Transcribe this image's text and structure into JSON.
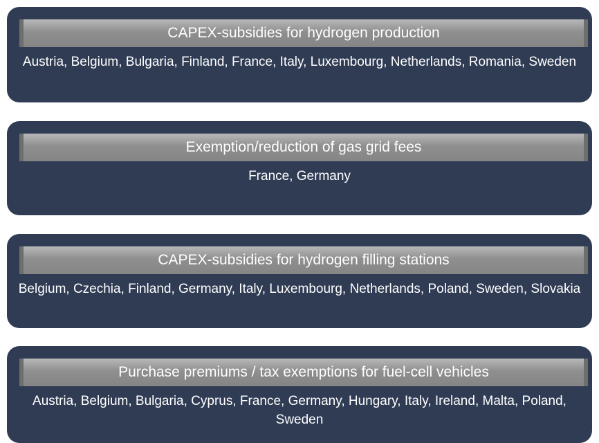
{
  "items": [
    {
      "title": "CAPEX-subsidies for hydrogen production",
      "countries": "Austria, Belgium, Bulgaria, Finland, France, Italy, Luxembourg, Netherlands, Romania, Sweden"
    },
    {
      "title": "Exemption/reduction of gas grid fees",
      "countries": "France, Germany"
    },
    {
      "title": "CAPEX-subsidies for hydrogen filling stations",
      "countries": "Belgium, Czechia, Finland, Germany, Italy, Luxembourg, Netherlands, Poland, Sweden, Slovakia"
    },
    {
      "title": "Purchase premiums / tax exemptions for fuel-cell vehicles",
      "countries": "Austria, Belgium, Bulgaria, Cyprus, France, Germany, Hungary, Italy, Ireland, Malta, Poland, Sweden"
    }
  ]
}
